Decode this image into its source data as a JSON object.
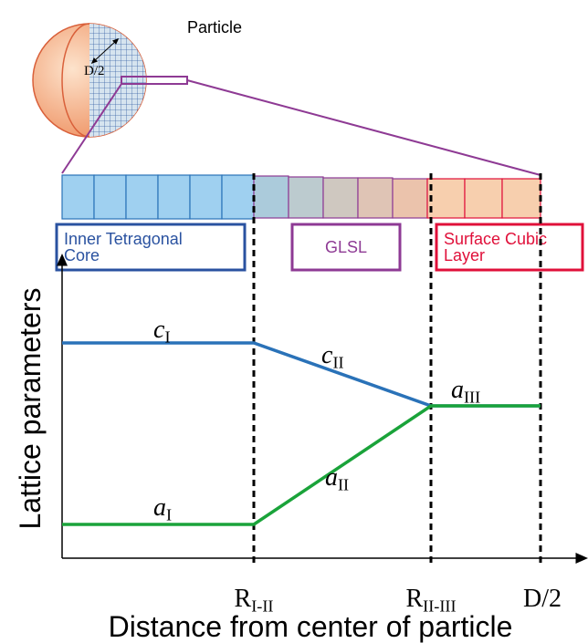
{
  "particle_label": "Particle",
  "radius_label": "D/2",
  "regions": [
    {
      "label": "Inner Tetragonal Core"
    },
    {
      "label": "GLSL"
    },
    {
      "label": "Surface Cubic Layer"
    }
  ],
  "y_axis_label": "Lattice parameters",
  "x_axis_label": "Distance from center of particle",
  "x_ticks": [
    {
      "main": "R",
      "sub": "I-II"
    },
    {
      "main": "R",
      "sub": "II-III"
    },
    {
      "main": "D/2",
      "sub": ""
    }
  ],
  "curve_labels": [
    {
      "main": "c",
      "sub": "I"
    },
    {
      "main": "c",
      "sub": "II"
    },
    {
      "main": "a",
      "sub": "I"
    },
    {
      "main": "a",
      "sub": "II"
    },
    {
      "main": "a",
      "sub": "III"
    }
  ]
}
